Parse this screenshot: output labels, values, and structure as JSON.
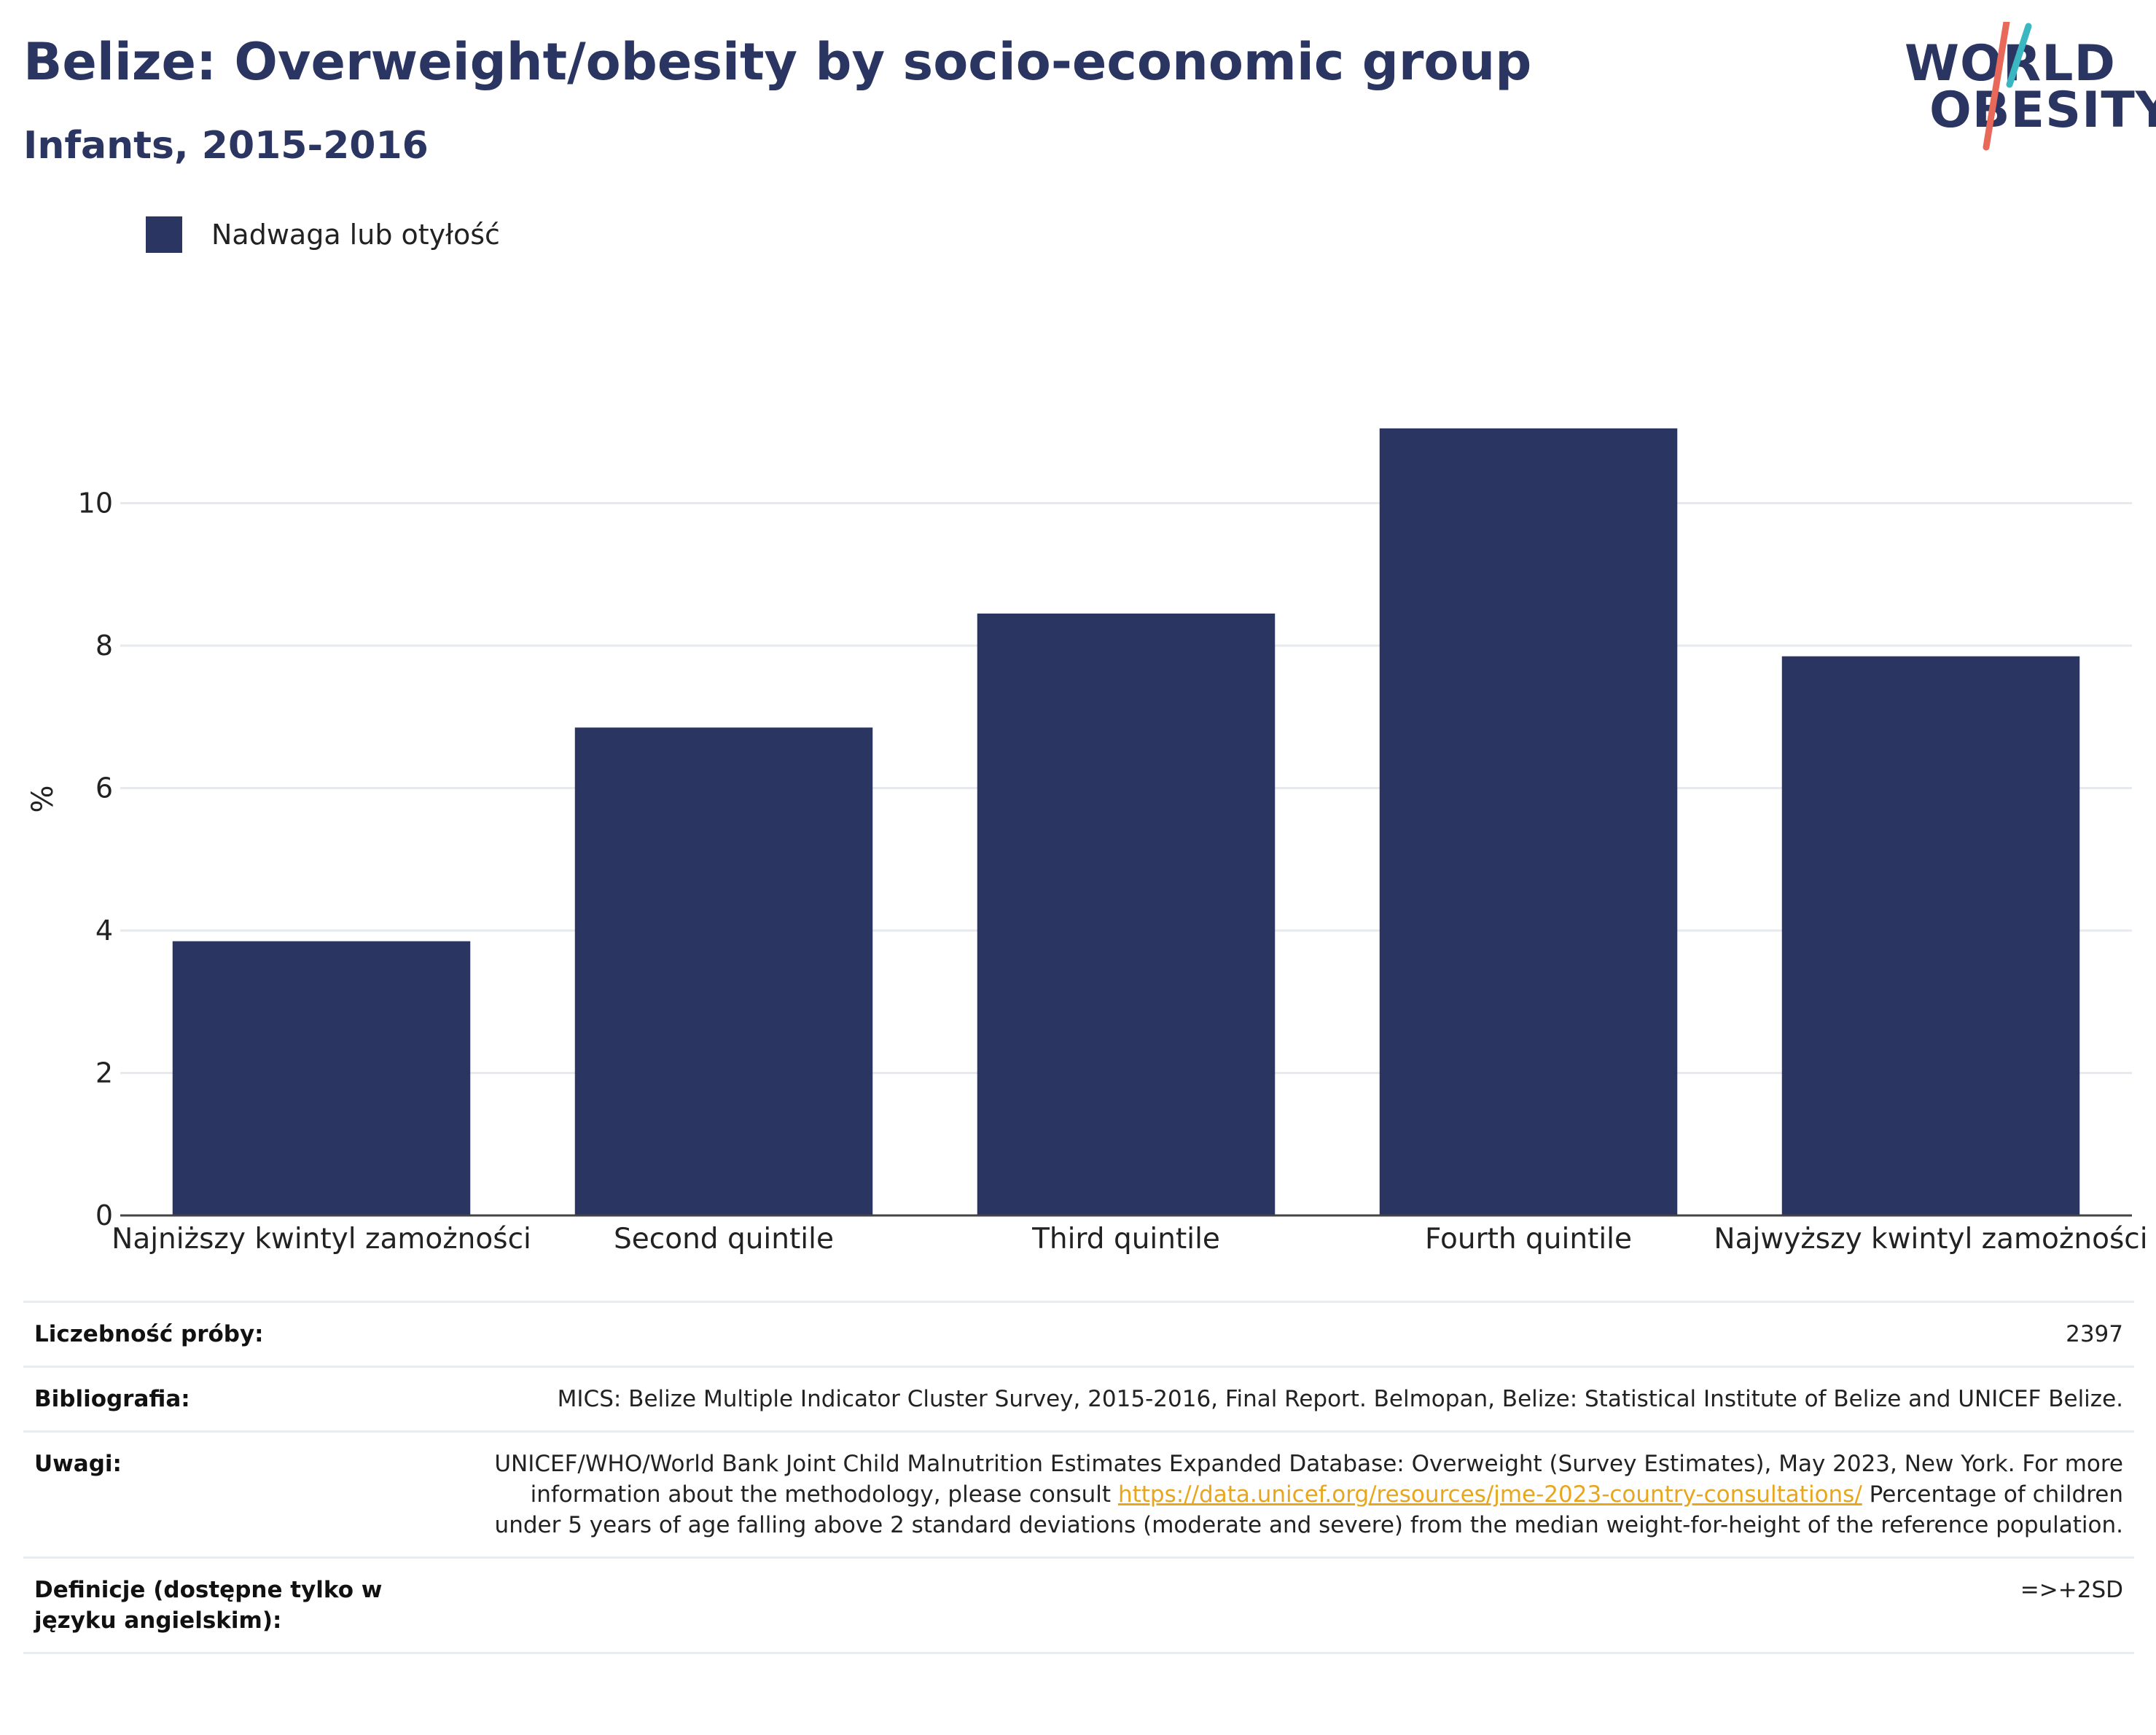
{
  "header": {
    "title": "Belize: Overweight/obesity by socio-economic group",
    "subtitle": "Infants, 2015-2016"
  },
  "logo": {
    "line1": "WORLD",
    "line2": "OBESITY",
    "colors": {
      "navy": "#2b3561",
      "teal": "#3ab7c0",
      "coral": "#e8685a"
    }
  },
  "chart_data": {
    "type": "bar",
    "categories": [
      "Najniższy kwintyl zamożności",
      "Second quintile",
      "Third quintile",
      "Fourth quintile",
      "Najwyższy kwintyl zamożności"
    ],
    "series": [
      {
        "name": "Nadwaga lub otyłość",
        "values": [
          3.85,
          6.85,
          8.45,
          11.05,
          7.85
        ],
        "color": "#2b3561"
      }
    ],
    "ylabel": "%",
    "xlabel": "",
    "ylim": [
      0,
      12
    ],
    "yticks": [
      0,
      2,
      4,
      6,
      8,
      10
    ],
    "grid": true,
    "legend": "top-left"
  },
  "meta": {
    "sample_label": "Liczebność próby:",
    "sample_value": "2397",
    "biblio_label": "Bibliografia:",
    "biblio_value": "MICS: Belize Multiple Indicator Cluster Survey, 2015-2016, Final Report. Belmopan, Belize: Statistical Institute of Belize and UNICEF Belize.",
    "notes_label": "Uwagi:",
    "notes_text1": "UNICEF/WHO/World Bank Joint Child Malnutrition Estimates Expanded Database: Overweight (Survey Estimates), May 2023, New York. For more information about the methodology, please consult ",
    "notes_link": "https://data.unicef.org/resources/jme-2023-country-consultations/",
    "notes_text2": " Percentage of children under 5 years of age falling above 2 standard deviations (moderate and severe) from the median weight-for-height of the reference population.",
    "def_label": "Definicje (dostępne tylko w języku angielskim):",
    "def_value": "=>+2SD"
  }
}
